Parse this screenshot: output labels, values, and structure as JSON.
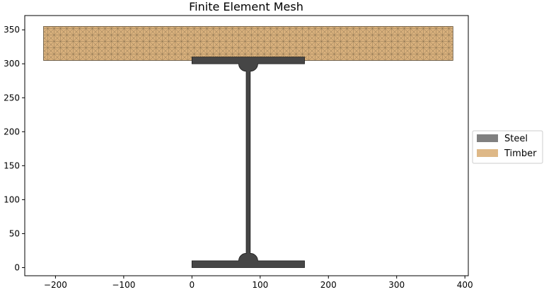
{
  "chart_data": {
    "type": "mesh",
    "title": "Finite Element Mesh",
    "xlabel": "",
    "ylabel": "",
    "xlim": [
      -245,
      405
    ],
    "ylim": [
      -12,
      371
    ],
    "xticks": [
      -200,
      -100,
      0,
      100,
      200,
      300,
      400
    ],
    "yticks": [
      0,
      50,
      100,
      150,
      200,
      250,
      300,
      350
    ],
    "grid": false,
    "legend_position": "right, outside",
    "series": [
      {
        "name": "Steel",
        "color": "#808080",
        "mesh_color": "#1c1c1c",
        "shape": "i-section",
        "outline": {
          "flange_width": 165,
          "depth": 310,
          "flange_thickness": 10,
          "web_thickness": 6,
          "root_radius": 11,
          "web_center_x": 82.5
        }
      },
      {
        "name": "Timber",
        "color": "#deb887",
        "mesh_color": "#6b5a3f",
        "shape": "rectangle",
        "outline": {
          "x_min": -217.5,
          "x_max": 382.5,
          "y_min": 305,
          "y_max": 355
        }
      }
    ]
  }
}
